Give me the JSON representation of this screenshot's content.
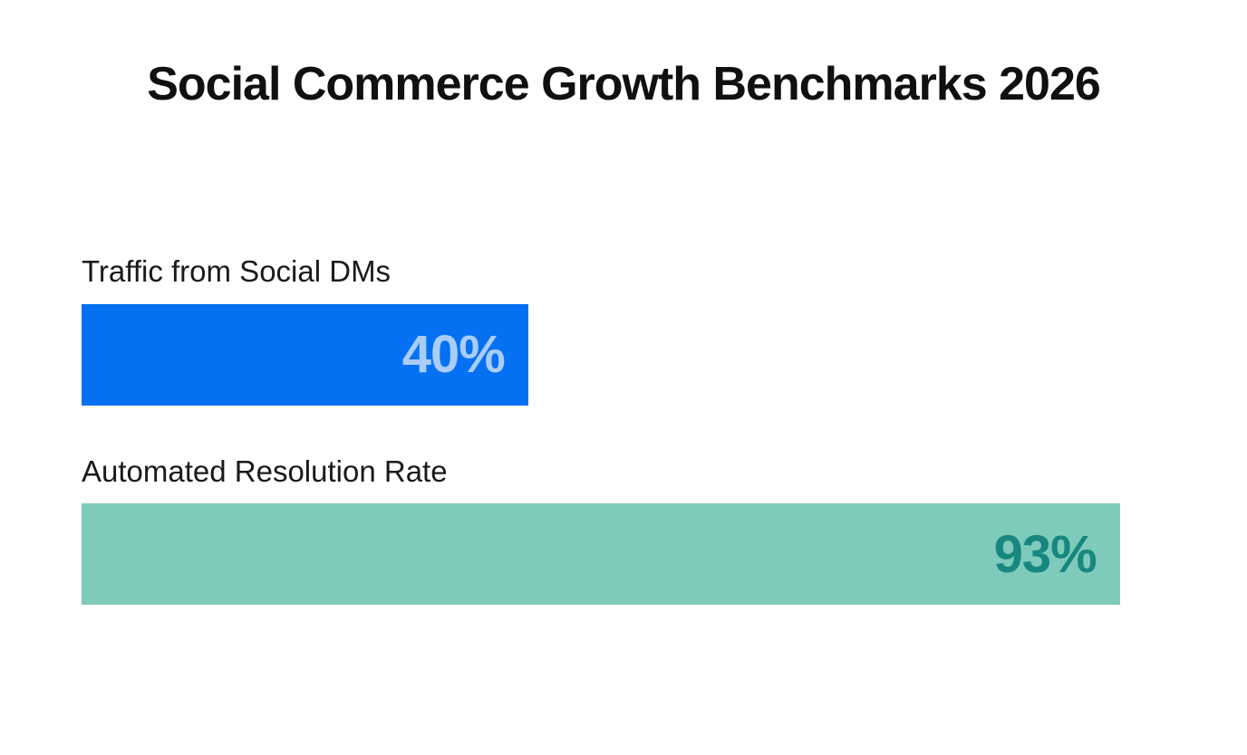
{
  "header": {
    "title": "Social Commerce Growth Benchmarks 2026"
  },
  "chart_data": {
    "type": "bar",
    "orientation": "horizontal",
    "title": "Social Commerce Growth Benchmarks 2026",
    "categories": [
      "Traffic from Social DMs",
      "Automated Resolution Rate"
    ],
    "values": [
      40,
      93
    ],
    "value_labels": [
      "40%",
      "93%"
    ],
    "bar_colors": [
      "#0571f2",
      "#7ecbbb"
    ],
    "value_text_colors": [
      "#a9cdf8",
      "#17877f"
    ],
    "xlabel": "",
    "ylabel": "",
    "xlim": [
      0,
      100
    ],
    "grid": false,
    "legend": false,
    "value_label_position": "inside-end",
    "background_color": "#ffffff"
  }
}
